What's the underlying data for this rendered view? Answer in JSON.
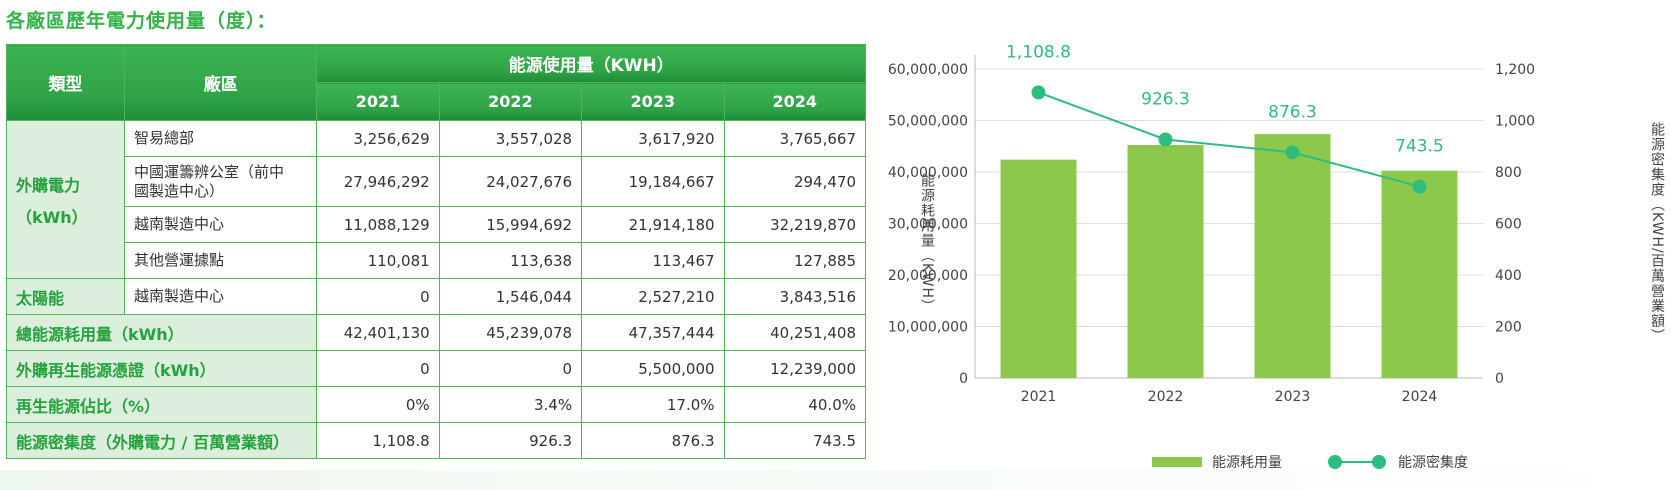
{
  "title": "各廠區歷年電力使用量（度）：",
  "table": {
    "col_type": "類型",
    "col_site": "廠區",
    "col_usage": "能源使用量（KWH）",
    "years": [
      "2021",
      "2022",
      "2023",
      "2024"
    ],
    "cat_purchased": [
      "外購電力",
      "（kWh）"
    ],
    "cat_solar": "太陽能",
    "rows_purchased": [
      {
        "site": "智易總部",
        "values": [
          "3,256,629",
          "3,557,028",
          "3,617,920",
          "3,765,667"
        ]
      },
      {
        "site": [
          "中國運籌辨公室（前中",
          "國製造中心）"
        ],
        "values": [
          "27,946,292",
          "24,027,676",
          "19,184,667",
          "294,470"
        ]
      },
      {
        "site": "越南製造中心",
        "values": [
          "11,088,129",
          "15,994,692",
          "21,914,180",
          "32,219,870"
        ]
      },
      {
        "site": "其他營運據點",
        "values": [
          "110,081",
          "113,638",
          "113,467",
          "127,885"
        ]
      }
    ],
    "row_solar": {
      "site": "越南製造中心",
      "values": [
        "0",
        "1,546,044",
        "2,527,210",
        "3,843,516"
      ]
    },
    "summary_rows": [
      {
        "label": "總能源耗用量（kWh）",
        "values": [
          "42,401,130",
          "45,239,078",
          "47,357,444",
          "40,251,408"
        ]
      },
      {
        "label": "外購再生能源憑證（kWh）",
        "values": [
          "0",
          "0",
          "5,500,000",
          "12,239,000"
        ]
      },
      {
        "label": "再生能源佔比（%）",
        "values": [
          "0%",
          "3.4%",
          "17.0%",
          "40.0%"
        ]
      },
      {
        "label": "能源密集度（外購電力 / 百萬營業額）",
        "values": [
          "1,108.8",
          "926.3",
          "876.3",
          "743.5"
        ]
      }
    ]
  },
  "chart_data": {
    "type": "bar",
    "categories": [
      "2021",
      "2022",
      "2023",
      "2024"
    ],
    "series": [
      {
        "name": "能源耗用量",
        "type": "bar",
        "axis": "left",
        "color": "#8cc84b",
        "values": [
          42401130,
          45239078,
          47357444,
          40251408
        ]
      },
      {
        "name": "能源密集度",
        "type": "line",
        "axis": "right",
        "color": "#2dbd7e",
        "values": [
          1108.8,
          926.3,
          876.3,
          743.5
        ],
        "labels": [
          "1,108.8",
          "926.3",
          "876.3",
          "743.5"
        ]
      }
    ],
    "ylabel": "能源耗用量（KWH）",
    "y2label": "能源密集度（KWH/百萬營業額）",
    "ylim": [
      0,
      60000000
    ],
    "y2lim": [
      0,
      1200
    ],
    "yticks": [
      "0",
      "10,000,000",
      "20,000,000",
      "30,000,000",
      "40,000,000",
      "50,000,000",
      "60,000,000"
    ],
    "y2ticks": [
      "0",
      "200",
      "400",
      "600",
      "800",
      "1,000",
      "1,200"
    ],
    "grid": true,
    "legend_position": "bottom"
  }
}
